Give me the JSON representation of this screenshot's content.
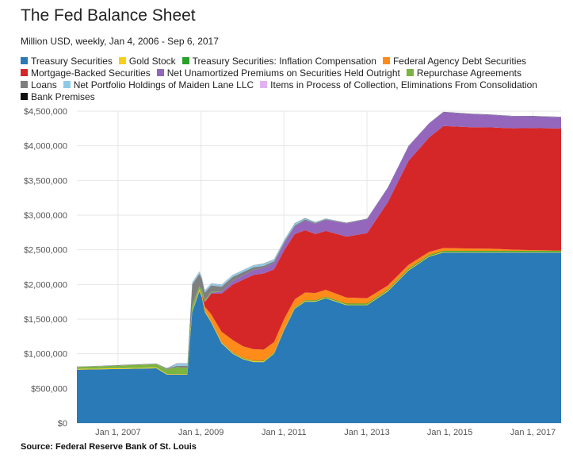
{
  "title": "The Fed Balance Sheet",
  "subtitle": "Million USD, weekly, Jan 4, 2006 - Sep 6, 2017",
  "source": "Source: Federal Reserve Bank of St. Louis",
  "legend": [
    {
      "label": "Treasury Securities",
      "color": "#2a7ab8"
    },
    {
      "label": "Gold Stock",
      "color": "#f5d017"
    },
    {
      "label": "Treasury Securities: Inflation Compensation",
      "color": "#2ca02c"
    },
    {
      "label": "Federal Agency Debt Securities",
      "color": "#ff8c1a"
    },
    {
      "label": "Mortgage-Backed Securities",
      "color": "#d62728"
    },
    {
      "label": "Net Unamortized Premiums on Securities Held Outright",
      "color": "#9467bd"
    },
    {
      "label": "Repurchase Agreements",
      "color": "#7cb342"
    },
    {
      "label": "Loans",
      "color": "#7f7f7f"
    },
    {
      "label": "Net Portfolio Holdings of Maiden Lane LLC",
      "color": "#8ecae6"
    },
    {
      "label": "Items in Process of Collection, Eliminations From Consolidation",
      "color": "#e0b3f0"
    },
    {
      "label": "Bank Premises",
      "color": "#111111"
    }
  ],
  "chart_data": {
    "type": "area",
    "stacked": true,
    "x_type": "date",
    "x_range": [
      "2006-01-04",
      "2017-09-06"
    ],
    "ylim": [
      0,
      4500000
    ],
    "yticks": [
      0,
      500000,
      1000000,
      1500000,
      2000000,
      2500000,
      3000000,
      3500000,
      4000000,
      4500000
    ],
    "ytick_labels": [
      "$0",
      "$500,000",
      "$1,000,000",
      "$1,500,000",
      "$2,000,000",
      "$2,500,000",
      "$3,000,000",
      "$3,500,000",
      "$4,000,000",
      "$4,500,000"
    ],
    "xticks": [
      "2007-01-01",
      "2009-01-01",
      "2011-01-01",
      "2013-01-01",
      "2015-01-01",
      "2017-01-01"
    ],
    "xtick_labels": [
      "Jan 1, 2007",
      "Jan 1, 2009",
      "Jan 1, 2011",
      "Jan 1, 2013",
      "Jan 1, 2015",
      "Jan 1, 2017"
    ],
    "grid": true,
    "legend_position": "top",
    "x": [
      "2006-01-04",
      "2007-01-03",
      "2007-12-05",
      "2008-03-05",
      "2008-06-04",
      "2008-09-03",
      "2008-10-15",
      "2008-12-17",
      "2009-01-07",
      "2009-02-04",
      "2009-04-01",
      "2009-07-01",
      "2009-10-07",
      "2010-01-06",
      "2010-04-07",
      "2010-07-07",
      "2010-10-06",
      "2011-01-05",
      "2011-04-06",
      "2011-07-06",
      "2011-10-05",
      "2012-01-04",
      "2012-07-04",
      "2013-01-02",
      "2013-07-03",
      "2014-01-01",
      "2014-07-02",
      "2014-11-05",
      "2015-07-01",
      "2016-01-06",
      "2016-07-06",
      "2017-01-04",
      "2017-09-06"
    ],
    "series": [
      {
        "name": "Treasury Securities",
        "values": [
          770000,
          780000,
          790000,
          700000,
          700000,
          700000,
          1600000,
          1900000,
          1820000,
          1600000,
          1450000,
          1150000,
          1000000,
          920000,
          880000,
          880000,
          1000000,
          1350000,
          1650000,
          1750000,
          1750000,
          1800000,
          1700000,
          1700000,
          1900000,
          2200000,
          2400000,
          2460000,
          2460000,
          2460000,
          2460000,
          2460000,
          2460000
        ]
      },
      {
        "name": "Gold Stock",
        "values": [
          11000,
          11000,
          11000,
          11000,
          11000,
          11000,
          11000,
          11000,
          11000,
          11000,
          11000,
          11000,
          11000,
          11000,
          11000,
          11000,
          11000,
          11000,
          11000,
          11000,
          11000,
          11000,
          11000,
          11000,
          11000,
          11000,
          11000,
          11000,
          11000,
          11000,
          11000,
          11000,
          11000
        ]
      },
      {
        "name": "Treasury Securities: Inflation Compensation",
        "values": [
          4000,
          4000,
          5000,
          5000,
          5000,
          5000,
          5000,
          6000,
          6000,
          6000,
          6000,
          6000,
          7000,
          7000,
          7000,
          8000,
          8000,
          8000,
          9000,
          10000,
          10000,
          11000,
          12000,
          13000,
          13000,
          14000,
          14000,
          14000,
          14000,
          14000,
          14000,
          14000,
          14000
        ]
      },
      {
        "name": "Federal Agency Debt Securities",
        "values": [
          0,
          0,
          0,
          0,
          0,
          0,
          0,
          15000,
          20000,
          60000,
          100000,
          150000,
          180000,
          170000,
          169000,
          160000,
          150000,
          140000,
          115000,
          112000,
          105000,
          100000,
          87000,
          77000,
          60000,
          56000,
          44000,
          40000,
          33000,
          30000,
          17000,
          10000,
          4000
        ]
      },
      {
        "name": "Mortgage-Backed Securities",
        "values": [
          0,
          0,
          0,
          0,
          0,
          0,
          0,
          0,
          0,
          70000,
          300000,
          550000,
          800000,
          960000,
          1070000,
          1100000,
          1050000,
          990000,
          940000,
          900000,
          850000,
          850000,
          880000,
          940000,
          1200000,
          1500000,
          1650000,
          1760000,
          1750000,
          1750000,
          1750000,
          1760000,
          1760000
        ]
      },
      {
        "name": "Net Unamortized Premiums on Securities Held Outright",
        "values": [
          0,
          0,
          0,
          0,
          0,
          0,
          0,
          0,
          0,
          5000,
          15000,
          30000,
          50000,
          60000,
          70000,
          80000,
          90000,
          100000,
          110000,
          140000,
          150000,
          160000,
          190000,
          200000,
          210000,
          210000,
          205000,
          200000,
          190000,
          180000,
          175000,
          170000,
          165000
        ]
      },
      {
        "name": "Repurchase Agreements",
        "values": [
          25000,
          35000,
          45000,
          60000,
          90000,
          80000,
          80000,
          40000,
          70000,
          20000,
          15000,
          0,
          0,
          0,
          0,
          0,
          0,
          0,
          0,
          0,
          0,
          0,
          0,
          0,
          0,
          0,
          0,
          0,
          0,
          0,
          0,
          0,
          0
        ]
      },
      {
        "name": "Loans",
        "values": [
          500,
          500,
          1000,
          10000,
          20000,
          30000,
          300000,
          180000,
          160000,
          110000,
          90000,
          70000,
          60000,
          50000,
          40000,
          30000,
          25000,
          20000,
          18000,
          15000,
          12000,
          10000,
          5000,
          3000,
          2000,
          1000,
          500,
          500,
          500,
          500,
          500,
          500,
          500
        ]
      },
      {
        "name": "Net Portfolio Holdings of Maiden Lane LLC",
        "values": [
          0,
          0,
          0,
          0,
          30000,
          29000,
          27000,
          26000,
          26000,
          26000,
          26000,
          26000,
          26000,
          26000,
          28000,
          28000,
          28000,
          27000,
          27000,
          16000,
          10000,
          7000,
          2000,
          1700,
          1500,
          1500,
          1500,
          1500,
          1500,
          1500,
          1500,
          1700,
          1700
        ]
      },
      {
        "name": "Items in Process of Collection, Eliminations From Consolidation",
        "values": [
          4000,
          3000,
          3000,
          3000,
          3000,
          3000,
          5000,
          4000,
          4000,
          3000,
          2000,
          2000,
          1000,
          1000,
          500,
          500,
          500,
          300,
          300,
          300,
          300,
          200,
          200,
          200,
          200,
          200,
          200,
          200,
          200,
          200,
          200,
          200,
          200
        ]
      },
      {
        "name": "Bank Premises",
        "values": [
          2000,
          2000,
          2000,
          2000,
          2000,
          2000,
          2000,
          2000,
          2000,
          2000,
          2000,
          2100,
          2100,
          2100,
          2100,
          2100,
          2200,
          2200,
          2200,
          2200,
          2200,
          2200,
          2200,
          2200,
          2200,
          2200,
          2200,
          2200,
          2200,
          2200,
          2200,
          2200,
          2200
        ]
      }
    ]
  }
}
